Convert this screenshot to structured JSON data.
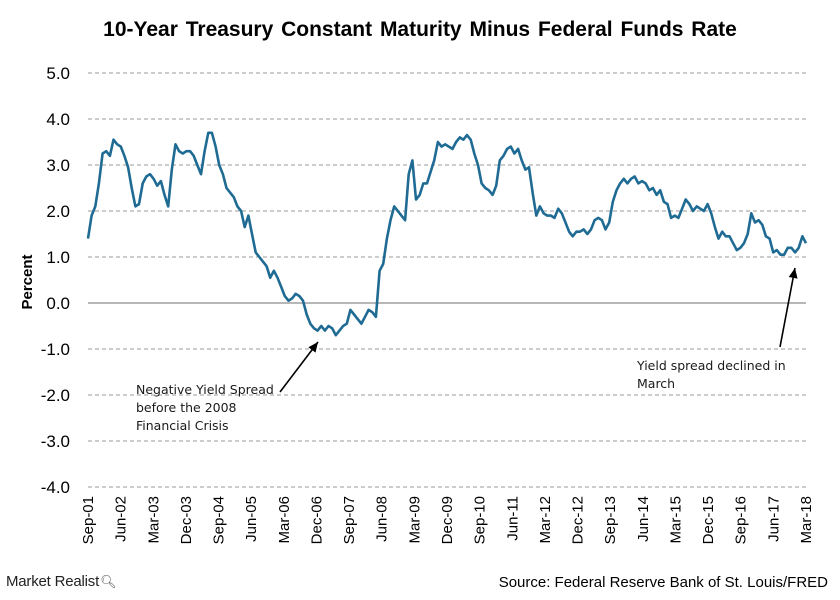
{
  "brand": {
    "name": "Market Realist",
    "icon": "magnifier-icon"
  },
  "source": "Source:  Federal Reserve Bank of St. Louis/FRED",
  "chart_data": {
    "type": "line",
    "title": "10-Year Treasury Constant Maturity Minus Federal Funds Rate",
    "ylabel": "Percent",
    "xlabel": "",
    "ylim": [
      -4.0,
      5.0
    ],
    "yticks": [
      "5.0",
      "4.0",
      "3.0",
      "2.0",
      "1.0",
      "0.0",
      "-1.0",
      "-2.0",
      "-3.0",
      "-4.0"
    ],
    "xticks": [
      "Sep-01",
      "Jun-02",
      "Mar-03",
      "Dec-03",
      "Sep-04",
      "Jun-05",
      "Mar-06",
      "Dec-06",
      "Sep-07",
      "Jun-08",
      "Mar-09",
      "Dec-09",
      "Sep-10",
      "Jun-11",
      "Mar-12",
      "Dec-12",
      "Sep-13",
      "Jun-14",
      "Mar-15",
      "Dec-15",
      "Sep-16",
      "Jun-17",
      "Mar-18"
    ],
    "grid": "horizontal-dashed",
    "line_color": "#1f6b94",
    "series": [
      {
        "x_start": "Sep-01",
        "frequency": "monthly",
        "values": [
          1.4,
          1.9,
          2.1,
          2.6,
          3.25,
          3.3,
          3.2,
          3.55,
          3.45,
          3.4,
          3.2,
          2.95,
          2.5,
          2.1,
          2.15,
          2.6,
          2.75,
          2.8,
          2.7,
          2.55,
          2.65,
          2.35,
          2.1,
          2.9,
          3.45,
          3.3,
          3.25,
          3.3,
          3.3,
          3.2,
          3.0,
          2.8,
          3.3,
          3.7,
          3.7,
          3.4,
          3.0,
          2.8,
          2.5,
          2.4,
          2.3,
          2.1,
          2.0,
          1.65,
          1.9,
          1.5,
          1.1,
          1.0,
          0.9,
          0.8,
          0.55,
          0.7,
          0.55,
          0.35,
          0.15,
          0.05,
          0.1,
          0.2,
          0.15,
          0.05,
          -0.25,
          -0.45,
          -0.55,
          -0.6,
          -0.5,
          -0.6,
          -0.5,
          -0.55,
          -0.7,
          -0.6,
          -0.5,
          -0.45,
          -0.15,
          -0.25,
          -0.35,
          -0.45,
          -0.3,
          -0.15,
          -0.2,
          -0.3,
          0.7,
          0.85,
          1.4,
          1.8,
          2.1,
          2.0,
          1.9,
          1.8,
          2.8,
          3.1,
          2.25,
          2.35,
          2.6,
          2.6,
          2.85,
          3.1,
          3.5,
          3.4,
          3.45,
          3.4,
          3.35,
          3.5,
          3.6,
          3.55,
          3.65,
          3.55,
          3.25,
          3.0,
          2.6,
          2.5,
          2.45,
          2.35,
          2.55,
          3.1,
          3.2,
          3.35,
          3.4,
          3.25,
          3.35,
          3.1,
          2.9,
          2.95,
          2.4,
          1.9,
          2.1,
          1.95,
          1.9,
          1.9,
          1.85,
          2.05,
          1.95,
          1.75,
          1.55,
          1.45,
          1.55,
          1.55,
          1.6,
          1.5,
          1.6,
          1.8,
          1.85,
          1.8,
          1.6,
          1.75,
          2.2,
          2.45,
          2.6,
          2.7,
          2.6,
          2.7,
          2.75,
          2.6,
          2.65,
          2.6,
          2.45,
          2.5,
          2.35,
          2.45,
          2.2,
          2.15,
          1.85,
          1.9,
          1.85,
          2.05,
          2.25,
          2.15,
          2.0,
          2.1,
          2.05,
          2.0,
          2.15,
          1.95,
          1.65,
          1.4,
          1.55,
          1.45,
          1.45,
          1.3,
          1.15,
          1.2,
          1.3,
          1.5,
          1.95,
          1.75,
          1.8,
          1.7,
          1.45,
          1.4,
          1.1,
          1.15,
          1.05,
          1.05,
          1.2,
          1.2,
          1.1,
          1.2,
          1.45,
          1.3
        ]
      }
    ],
    "annotations": [
      {
        "lines": [
          "Negative Yield Spread",
          "before the 2008",
          "Financial Crisis"
        ]
      },
      {
        "lines": [
          "Yield spread declined in",
          "March"
        ]
      }
    ]
  }
}
